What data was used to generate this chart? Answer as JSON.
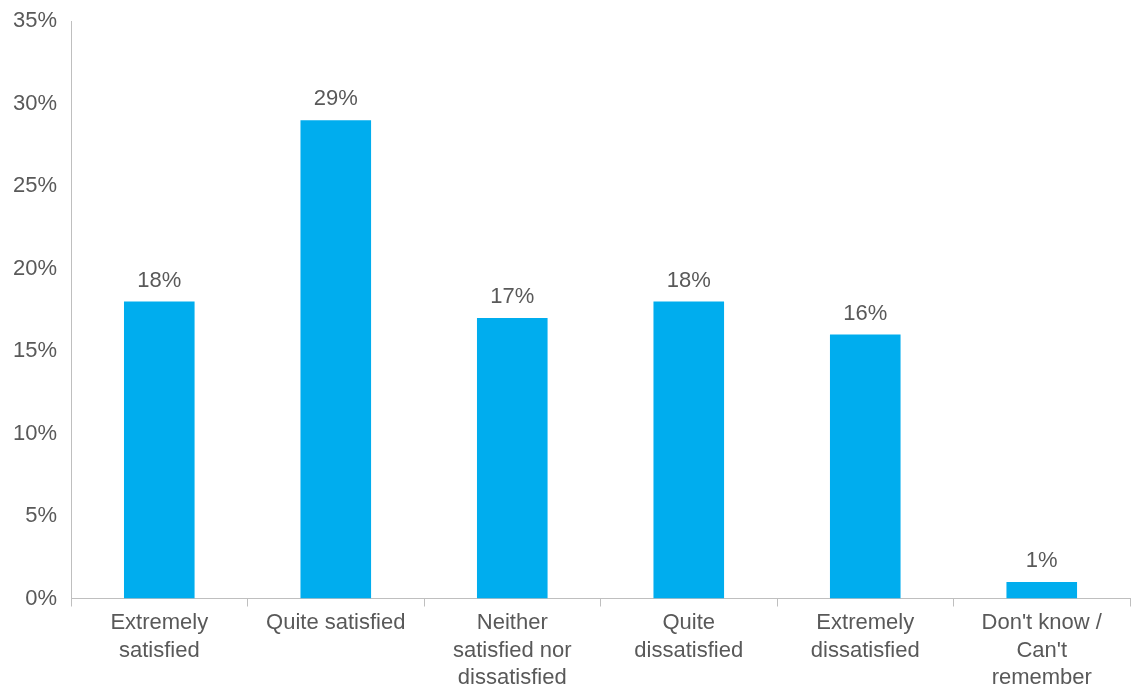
{
  "chart_data": {
    "type": "bar",
    "categories": [
      "Extremely satisfied",
      "Quite satisfied",
      "Neither satisfied nor dissatisfied",
      "Quite dissatisfied",
      "Extremely dissatisfied",
      "Don't know / Can't remember"
    ],
    "values": [
      18,
      29,
      17,
      18,
      16,
      1
    ],
    "value_labels": [
      "18%",
      "29%",
      "17%",
      "18%",
      "16%",
      "1%"
    ],
    "color": "#00adee",
    "ylim": [
      0,
      35
    ],
    "yticks": [
      {
        "value": 0,
        "label": "0%"
      },
      {
        "value": 5,
        "label": "5%"
      },
      {
        "value": 10,
        "label": "10%"
      },
      {
        "value": 15,
        "label": "15%"
      },
      {
        "value": 20,
        "label": "20%"
      },
      {
        "value": 25,
        "label": "25%"
      },
      {
        "value": 30,
        "label": "30%"
      },
      {
        "value": 35,
        "label": "35%"
      }
    ],
    "legend": false
  }
}
